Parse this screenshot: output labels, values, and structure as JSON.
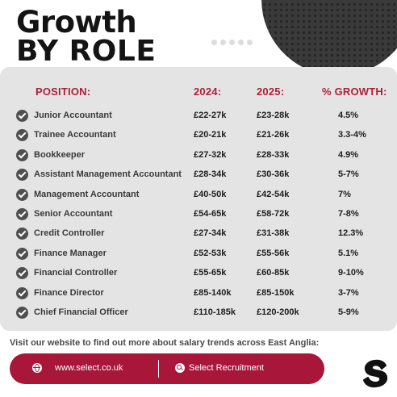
{
  "title": {
    "line1": "Growth",
    "line2": "BY ROLE"
  },
  "headers": {
    "position": "POSITION:",
    "y2024": "2024:",
    "y2025": "2025:",
    "growth": "% GROWTH:"
  },
  "rows": [
    {
      "position": "Junior Accountant",
      "y2024": "£22-27k",
      "y2025": "£23-28k",
      "growth": "4.5%"
    },
    {
      "position": "Trainee Accountant",
      "y2024": "£20-21k",
      "y2025": "£21-26k",
      "growth": "3.3-4%"
    },
    {
      "position": "Bookkeeper",
      "y2024": "£27-32k",
      "y2025": "£28-33k",
      "growth": "4.9%"
    },
    {
      "position": "Assistant Management Accountant",
      "y2024": "£28-34k",
      "y2025": "£30-36k",
      "growth": "5-7%"
    },
    {
      "position": "Management Accountant",
      "y2024": "£40-50k",
      "y2025": "£42-54k",
      "growth": "7%"
    },
    {
      "position": "Senior Accountant",
      "y2024": "£54-65k",
      "y2025": "£58-72k",
      "growth": "7-8%"
    },
    {
      "position": "Credit Controller",
      "y2024": "£27-34k",
      "y2025": "£31-38k",
      "growth": "12.3%"
    },
    {
      "position": "Finance Manager",
      "y2024": "£52-53k",
      "y2025": "£55-56k",
      "growth": "5.1%"
    },
    {
      "position": "Financial Controller",
      "y2024": "£55-65k",
      "y2025": "£60-85k",
      "growth": "9-10%"
    },
    {
      "position": "Finance Director",
      "y2024": "£85-140k",
      "y2025": "£85-150k",
      "growth": "3-7%"
    },
    {
      "position": "Chief Financial Officer",
      "y2024": "£110-185k",
      "y2025": "£120-200k",
      "growth": "5-9%"
    }
  ],
  "footer": {
    "visit_text": "Visit our website to find out more about salary trends across East Anglia:",
    "website": "www.select.co.uk",
    "search_text": "Select Recruitment"
  },
  "icons": {
    "row": "check-circle-icon",
    "website": "globe-icon",
    "search": "search-icon",
    "logo": "select-s-logo"
  },
  "colors": {
    "accent": "#b01d3a",
    "bar": "#a8173a",
    "panel": "#e4e4e4",
    "dark": "#141414"
  }
}
